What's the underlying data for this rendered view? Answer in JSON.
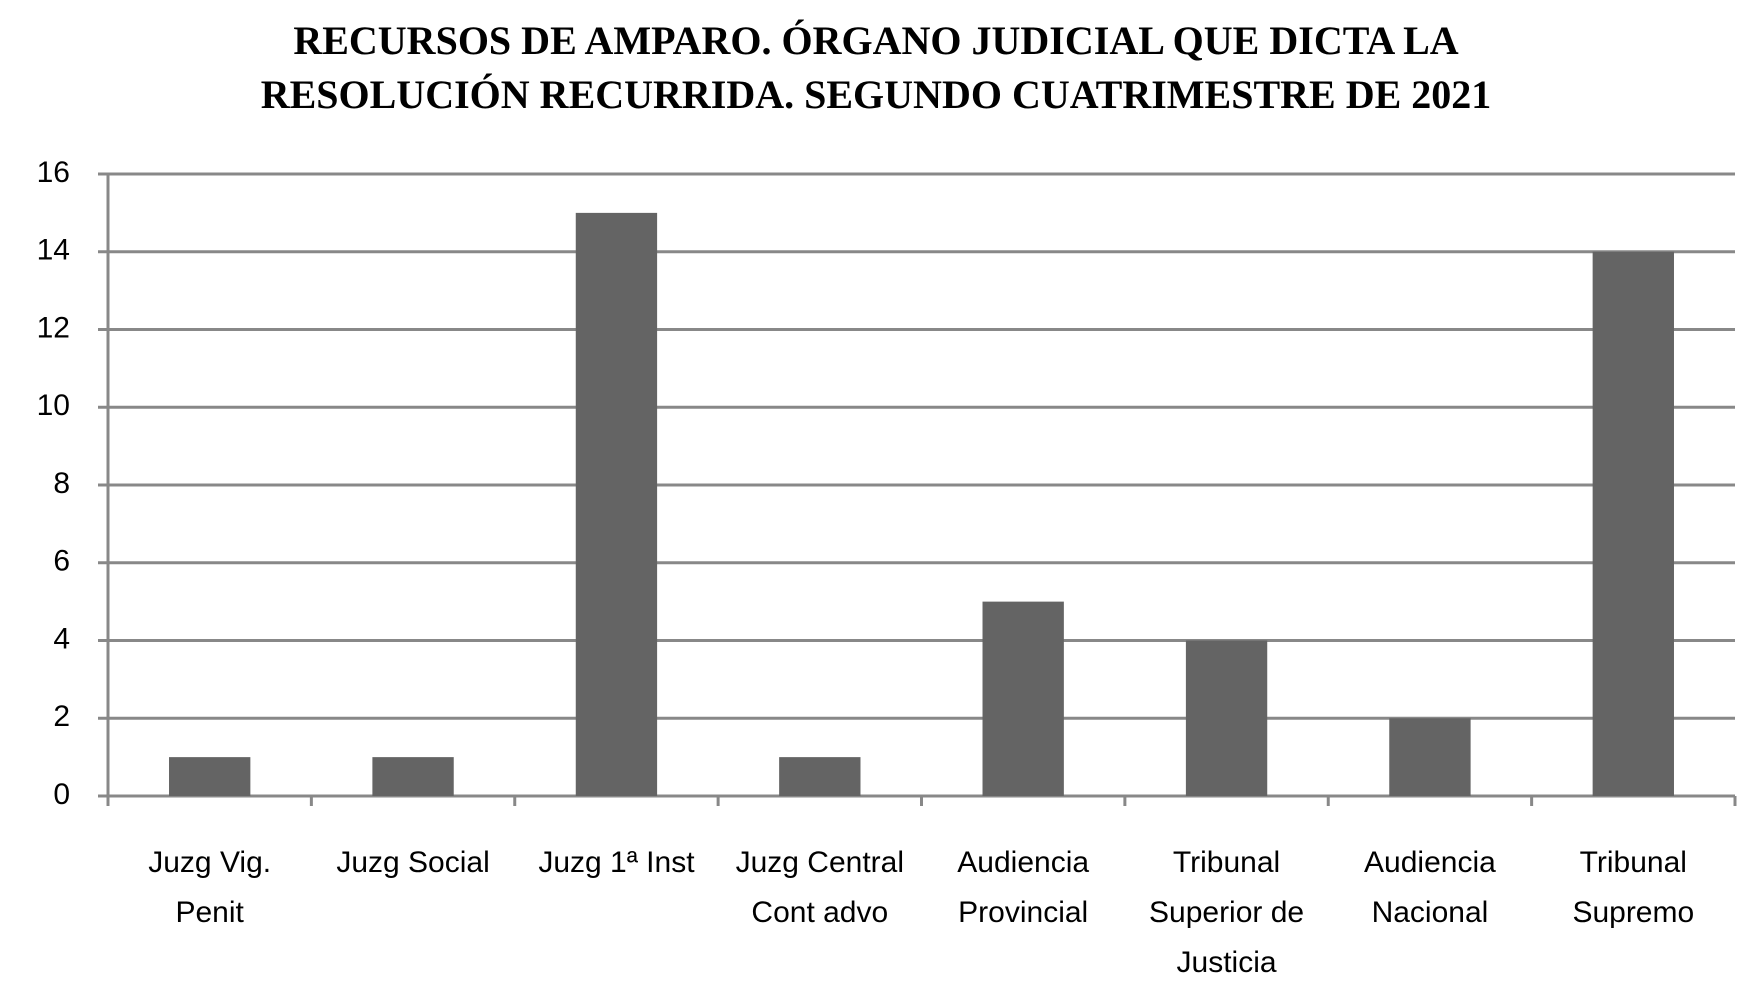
{
  "chart_data": {
    "type": "bar",
    "title": "RECURSOS DE AMPARO. ÓRGANO JUDICIAL QUE DICTA LA RESOLUCIÓN RECURRIDA. SEGUNDO CUATRIMESTRE DE 2021",
    "categories": [
      "Juzg Vig. Penit",
      "Juzg Social",
      "Juzg 1ª Inst",
      "Juzg Central Cont advo",
      "Audiencia Provincial",
      "Tribunal Superior de Justicia",
      "Audiencia Nacional",
      "Tribunal Supremo"
    ],
    "values": [
      1,
      1,
      15,
      1,
      5,
      4,
      2,
      14
    ],
    "color": "#646464",
    "ylim": [
      0,
      16
    ],
    "yticks": [
      0,
      2,
      4,
      6,
      8,
      10,
      12,
      14,
      16
    ],
    "grid": true
  }
}
